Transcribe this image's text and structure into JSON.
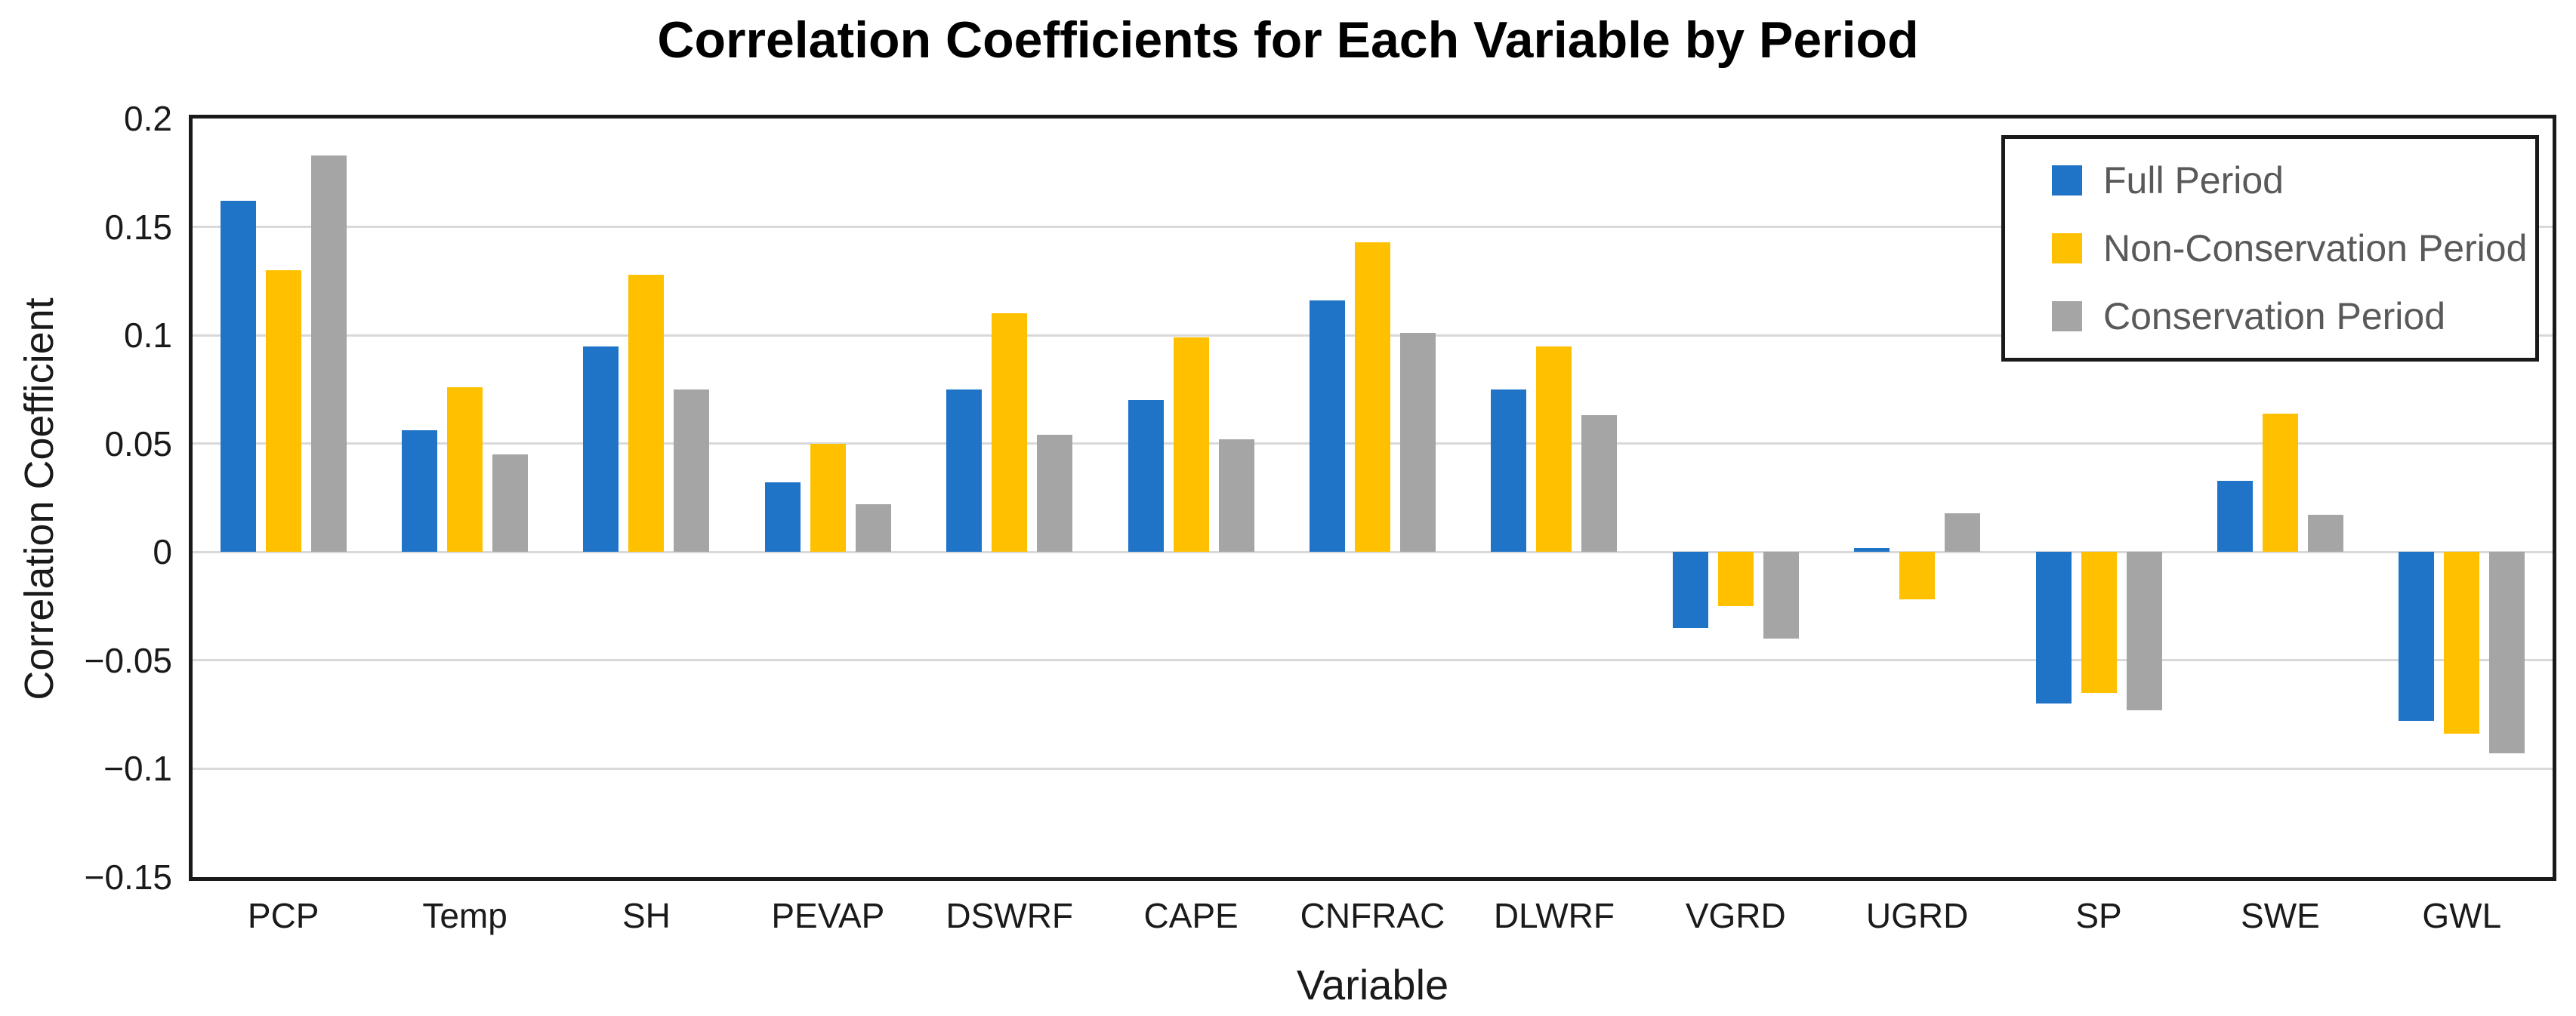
{
  "title": "Correlation Coefficients for Each Variable by Period",
  "y_axis": {
    "title": "Correlation Coefficient",
    "tick_labels": [
      "0.2",
      "0.15",
      "0.1",
      "0.05",
      "0",
      "−0.05",
      "−0.1",
      "−0.15"
    ]
  },
  "x_axis": {
    "title": "Variable"
  },
  "legend": {
    "items": [
      {
        "label": "Full Period",
        "color": "#1F74C8"
      },
      {
        "label": "Non-Conservation Period",
        "color": "#FFC000"
      },
      {
        "label": "Conservation Period",
        "color": "#A5A5A5"
      }
    ]
  },
  "colors": {
    "full_period": "#1F74C8",
    "non_conservation_period": "#FFC000",
    "conservation_period": "#A5A5A5",
    "gridline": "#D9D9D9",
    "axis_border": "#1A1A1A",
    "legend_text": "#595959"
  },
  "chart_data": {
    "type": "bar",
    "title": "Correlation Coefficients for Each Variable by Period",
    "xlabel": "Variable",
    "ylabel": "Correlation Coefficient",
    "ylim": [
      -0.15,
      0.2
    ],
    "ytick_step": 0.05,
    "grid": true,
    "legend_position": "top-right",
    "categories": [
      "PCP",
      "Temp",
      "SH",
      "PEVAP",
      "DSWRF",
      "CAPE",
      "CNFRAC",
      "DLWRF",
      "VGRD",
      "UGRD",
      "SP",
      "SWE",
      "GWL"
    ],
    "series": [
      {
        "name": "Full Period",
        "color": "#1F74C8",
        "values": [
          0.162,
          0.056,
          0.095,
          0.032,
          0.075,
          0.07,
          0.116,
          0.075,
          -0.035,
          0.002,
          -0.07,
          0.033,
          -0.078
        ]
      },
      {
        "name": "Non-Conservation Period",
        "color": "#FFC000",
        "values": [
          0.13,
          0.076,
          0.128,
          0.05,
          0.11,
          0.099,
          0.143,
          0.095,
          -0.025,
          -0.022,
          -0.065,
          0.064,
          -0.084
        ]
      },
      {
        "name": "Conservation Period",
        "color": "#A5A5A5",
        "values": [
          0.183,
          0.045,
          0.075,
          0.022,
          0.054,
          0.052,
          0.101,
          0.063,
          -0.04,
          0.018,
          -0.073,
          0.017,
          -0.093
        ]
      }
    ]
  }
}
